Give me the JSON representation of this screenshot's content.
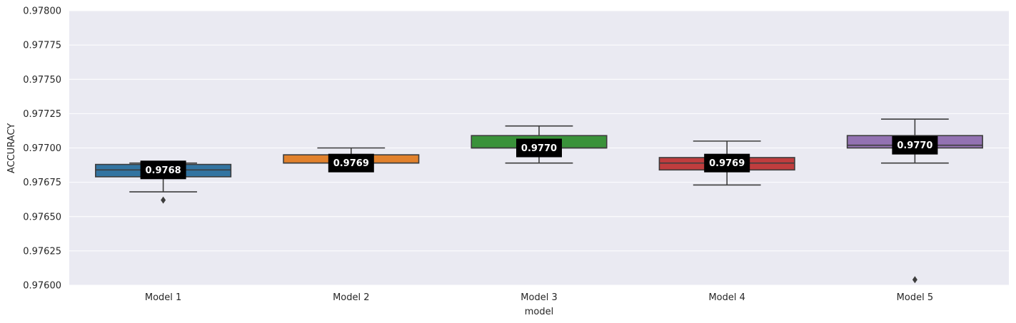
{
  "chart_data": {
    "type": "box",
    "title": "",
    "xlabel": "model",
    "ylabel": "ACCURACY",
    "ylim": [
      0.976,
      0.978
    ],
    "yticks": [
      "0.97600",
      "0.97625",
      "0.97650",
      "0.97675",
      "0.97700",
      "0.97725",
      "0.97750",
      "0.97775",
      "0.97800"
    ],
    "ytick_values": [
      0.976,
      0.97625,
      0.9765,
      0.97675,
      0.977,
      0.97725,
      0.9775,
      0.97775,
      0.978
    ],
    "grid": true,
    "categories": [
      "Model 1",
      "Model 2",
      "Model 3",
      "Model 4",
      "Model 5"
    ],
    "boxes": [
      {
        "category": "Model 1",
        "color": "#3274a1",
        "whisker_low": 0.97668,
        "q1": 0.97679,
        "median": 0.97684,
        "q3": 0.97688,
        "whisker_high": 0.97689,
        "outliers": [
          0.97662
        ],
        "label": "0.9768"
      },
      {
        "category": "Model 2",
        "color": "#e1812c",
        "whisker_low": 0.97689,
        "q1": 0.97689,
        "median": 0.97689,
        "q3": 0.97695,
        "whisker_high": 0.977,
        "outliers": [],
        "label": "0.9769"
      },
      {
        "category": "Model 3",
        "color": "#3a923a",
        "whisker_low": 0.97689,
        "q1": 0.977,
        "median": 0.977,
        "q3": 0.97709,
        "whisker_high": 0.97716,
        "outliers": [],
        "label": "0.9770"
      },
      {
        "category": "Model 4",
        "color": "#c03d3e",
        "whisker_low": 0.97673,
        "q1": 0.97684,
        "median": 0.97689,
        "q3": 0.97693,
        "whisker_high": 0.97705,
        "outliers": [],
        "label": "0.9769"
      },
      {
        "category": "Model 5",
        "color": "#9372b2",
        "whisker_low": 0.97689,
        "q1": 0.977,
        "median": 0.97702,
        "q3": 0.97709,
        "whisker_high": 0.97721,
        "outliers": [
          0.97604
        ],
        "label": "0.9770"
      }
    ]
  }
}
